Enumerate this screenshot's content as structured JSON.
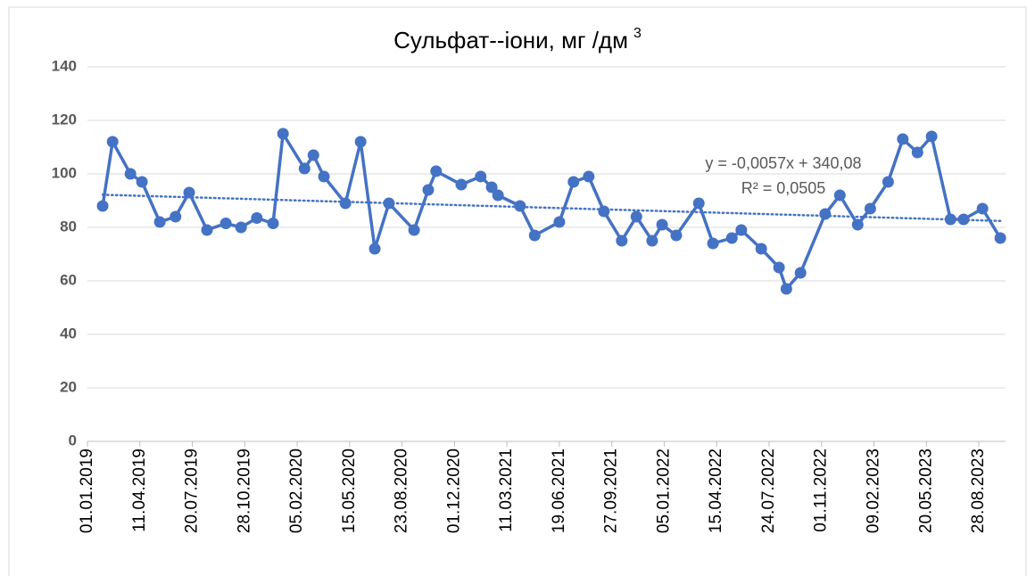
{
  "chart_data": {
    "type": "line",
    "title": "Сульфат--іони, мг /дм",
    "title_superscript": "3",
    "x": [
      43495,
      43514,
      43548,
      43570,
      43604,
      43634,
      43660,
      43694,
      43730,
      43759,
      43789,
      43820,
      43839,
      43880,
      43897,
      43917,
      43958,
      43987,
      44014,
      44041,
      44089,
      44116,
      44131,
      44179,
      44216,
      44237,
      44249,
      44291,
      44319,
      44366,
      44393,
      44422,
      44451,
      44485,
      44513,
      44543,
      44562,
      44589,
      44632,
      44659,
      44695,
      44713,
      44751,
      44785,
      44799,
      44826,
      44873,
      44901,
      44935,
      44959,
      44993,
      45021,
      45049,
      45076,
      45112,
      45137,
      45173,
      45207
    ],
    "series": [
      {
        "color": "#4472c4",
        "values": [
          88,
          112,
          100,
          97,
          82,
          84,
          93,
          79,
          81.5,
          80,
          83.5,
          81.5,
          115,
          102,
          107,
          99,
          89,
          112,
          72,
          89,
          79,
          94,
          101,
          96,
          99,
          95,
          92,
          88,
          77,
          82,
          97,
          99,
          86,
          75,
          84,
          75,
          81,
          77,
          89,
          74,
          76,
          79,
          72,
          65,
          57,
          63,
          85,
          92,
          81,
          87,
          97,
          113,
          108,
          114,
          83,
          83,
          87,
          76
        ]
      }
    ],
    "trendline": {
      "x": [
        43495,
        45207
      ],
      "values": [
        92.2,
        82.4
      ],
      "color": "#4472c4",
      "equation": "y = -0,0057x + 340,08",
      "r_squared": "R² = 0,0505"
    },
    "xlim": [
      43466,
      45217
    ],
    "xticks": [
      {
        "value": 43466,
        "label": "01.01.2019"
      },
      {
        "value": 43566,
        "label": "11.04.2019"
      },
      {
        "value": 43666,
        "label": "20.07.2019"
      },
      {
        "value": 43766,
        "label": "28.10.2019"
      },
      {
        "value": 43866,
        "label": "05.02.2020"
      },
      {
        "value": 43966,
        "label": "15.05.2020"
      },
      {
        "value": 44066,
        "label": "23.08.2020"
      },
      {
        "value": 44166,
        "label": "01.12.2020"
      },
      {
        "value": 44266,
        "label": "11.03.2021"
      },
      {
        "value": 44366,
        "label": "19.06.2021"
      },
      {
        "value": 44466,
        "label": "27.09.2021"
      },
      {
        "value": 44566,
        "label": "05.01.2022"
      },
      {
        "value": 44666,
        "label": "15.04.2022"
      },
      {
        "value": 44766,
        "label": "24.07.2022"
      },
      {
        "value": 44866,
        "label": "01.11.2022"
      },
      {
        "value": 44966,
        "label": "09.02.2023"
      },
      {
        "value": 45066,
        "label": "20.05.2023"
      },
      {
        "value": 45166,
        "label": "28.08.2023"
      }
    ],
    "ylim": [
      0,
      140
    ],
    "yticks": [
      0,
      20,
      40,
      60,
      80,
      100,
      120,
      140
    ],
    "grid": true
  }
}
